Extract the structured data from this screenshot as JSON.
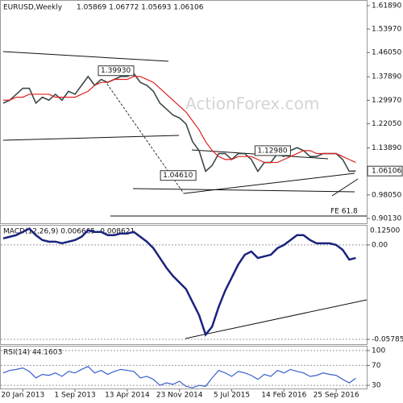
{
  "chart_data": [
    {
      "type": "line",
      "title": "EURUSD,Weekly",
      "header": "1.05869 1.06772 1.05693 1.06106",
      "watermark": "ActionForex.com",
      "categories": [
        null,
        null,
        null,
        "20 Jan 2013",
        null,
        null,
        null,
        null,
        null,
        null,
        null,
        "1 Sep 2013",
        null,
        null,
        null,
        null,
        null,
        null,
        null,
        "13 Apr 2014",
        null,
        null,
        null,
        null,
        null,
        null,
        null,
        "23 Nov 2014",
        null,
        null,
        null,
        null,
        null,
        null,
        null,
        "5 Jul 2015",
        null,
        null,
        null,
        null,
        null,
        null,
        null,
        "14 Feb 2016",
        null,
        null,
        null,
        null,
        null,
        null,
        null,
        "25 Sep 2016",
        null,
        null,
        null
      ],
      "series": [
        {
          "color": "#3b4a48",
          "values": [
            1.29,
            1.3,
            1.32,
            1.34,
            1.34,
            1.29,
            1.31,
            1.3,
            1.32,
            1.3,
            1.33,
            1.32,
            1.35,
            1.38,
            1.35,
            1.37,
            1.36,
            1.37,
            1.38,
            1.38,
            1.39,
            1.36,
            1.35,
            1.33,
            1.29,
            1.27,
            1.25,
            1.24,
            1.22,
            1.16,
            1.13,
            1.06,
            1.08,
            1.12,
            1.12,
            1.1,
            1.12,
            1.12,
            1.1,
            1.06,
            1.09,
            1.09,
            1.12,
            1.11,
            1.13,
            1.14,
            1.13,
            1.11,
            1.11,
            1.12,
            1.12,
            1.12,
            1.1,
            1.06,
            1.06106
          ]
        },
        {
          "color": "#e02020",
          "values": [
            1.3,
            1.3,
            1.31,
            1.31,
            1.32,
            1.32,
            1.32,
            1.32,
            1.31,
            1.31,
            1.31,
            1.31,
            1.32,
            1.33,
            1.35,
            1.36,
            1.36,
            1.37,
            1.37,
            1.37,
            1.38,
            1.38,
            1.37,
            1.36,
            1.34,
            1.32,
            1.3,
            1.28,
            1.26,
            1.23,
            1.2,
            1.16,
            1.13,
            1.11,
            1.1,
            1.1,
            1.11,
            1.11,
            1.11,
            1.1,
            1.09,
            1.09,
            1.09,
            1.1,
            1.11,
            1.12,
            1.13,
            1.13,
            1.12,
            1.12,
            1.12,
            1.12,
            1.11,
            1.1,
            1.09
          ]
        }
      ],
      "ylim": [
        0.885,
        1.635
      ],
      "yticks": [
        {
          "value": 1.6189,
          "label": "1.61890"
        },
        {
          "value": 1.5397,
          "label": "1.53970"
        },
        {
          "value": 1.4605,
          "label": "1.46050"
        },
        {
          "value": 1.3789,
          "label": "1.37890"
        },
        {
          "value": 1.2997,
          "label": "1.29970"
        },
        {
          "value": 1.2205,
          "label": "1.22050"
        },
        {
          "value": 1.1389,
          "label": "1.13890"
        },
        {
          "value": 0.9805,
          "label": "0.98050"
        },
        {
          "value": 0.9013,
          "label": "0.90130"
        }
      ],
      "annotations": [
        {
          "label": "1.39930",
          "value": 1.3993,
          "index": 20
        },
        {
          "label": "1.04610",
          "value": 1.0461,
          "index": 31
        },
        {
          "label": "1.12980",
          "value": 1.1298,
          "index": 44
        },
        {
          "label": "FE 61.8"
        }
      ]
    },
    {
      "type": "line",
      "title": "MACD(12,26,9) 0.006665 -0.008621",
      "scale_label": "0.12500",
      "series": [
        {
          "color": "#1a237e",
          "values": [
            0.004,
            0.005,
            0.006,
            0.008,
            0.01,
            0.006,
            0.003,
            0.002,
            0.002,
            0.001,
            0.002,
            0.003,
            0.005,
            0.009,
            0.008,
            0.008,
            0.006,
            0.006,
            0.007,
            0.007,
            0.008,
            0.005,
            0.002,
            -0.002,
            -0.008,
            -0.014,
            -0.019,
            -0.023,
            -0.027,
            -0.035,
            -0.043,
            -0.055,
            -0.05,
            -0.038,
            -0.028,
            -0.02,
            -0.012,
            -0.006,
            -0.004,
            -0.008,
            -0.007,
            -0.006,
            -0.002,
            0.0,
            0.003,
            0.006,
            0.006,
            0.003,
            0.001,
            0.001,
            0.001,
            0.0,
            -0.003,
            -0.009,
            -0.008
          ]
        }
      ],
      "ylim": [
        -0.0608,
        0.0118
      ],
      "yticks": [
        {
          "value": 0,
          "label": "0.00"
        },
        -0.057859
      ]
    },
    {
      "type": "line",
      "title": "RSI(14) 44.1603",
      "series": [
        {
          "color": "#3a5fcd",
          "values": [
            55,
            60,
            62,
            65,
            58,
            45,
            52,
            50,
            55,
            48,
            58,
            55,
            62,
            68,
            55,
            60,
            52,
            58,
            62,
            60,
            58,
            45,
            48,
            42,
            30,
            35,
            32,
            38,
            28,
            25,
            30,
            28,
            45,
            60,
            55,
            48,
            58,
            55,
            50,
            42,
            52,
            48,
            60,
            55,
            62,
            58,
            55,
            48,
            50,
            55,
            52,
            50,
            42,
            35,
            44.1603
          ]
        }
      ],
      "ylim": [
        22,
        108
      ],
      "yticks": [
        100,
        70,
        30
      ]
    }
  ]
}
